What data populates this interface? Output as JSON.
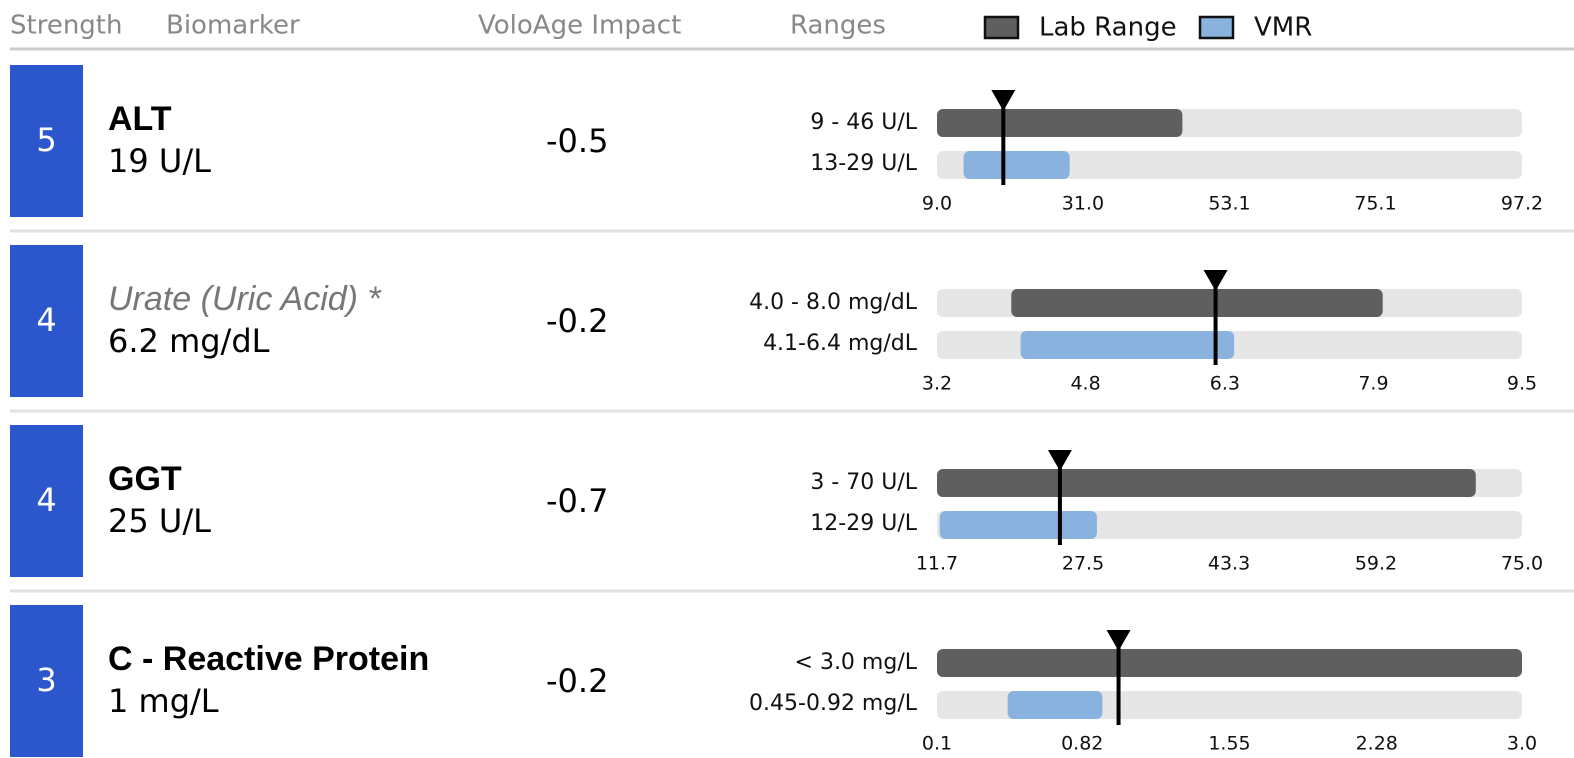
{
  "header": {
    "strength": "Strength",
    "biomarker": "Biomarker",
    "impact": "VoloAge Impact",
    "ranges": "Ranges"
  },
  "legend": [
    {
      "name": "Lab Range",
      "color": "#5f5f5f"
    },
    {
      "name": "VMR",
      "color": "#89b2de"
    }
  ],
  "rows": [
    {
      "strength": 5,
      "name": "ALT",
      "italic": false,
      "value_label": "19 U/L",
      "value": 19,
      "impact": -0.5,
      "lab_label": "9 - 46 U/L",
      "lab": [
        9,
        46
      ],
      "vmr_label": "13-29 U/L",
      "vmr": [
        13,
        29
      ],
      "ticks": [
        {
          "value": 9,
          "label": "9.0"
        },
        {
          "value": 31,
          "label": "31.0"
        },
        53.1,
        75.1,
        97.2
      ]
    },
    {
      "strength": 4,
      "name": "Urate (Uric Acid) *",
      "italic": true,
      "value_label": "6.2 mg/dL",
      "value": 6.2,
      "impact": -0.2,
      "lab_label": "4.0 - 8.0 mg/dL",
      "lab": [
        4,
        8
      ],
      "vmr_label": "4.1-6.4 mg/dL",
      "vmr": [
        4.1,
        6.4
      ],
      "ticks": [
        3.2,
        4.8,
        6.3,
        7.9,
        9.5
      ]
    },
    {
      "strength": 4,
      "name": "GGT",
      "italic": false,
      "value_label": "25 U/L",
      "value": 25,
      "impact": -0.7,
      "lab_label": "3 - 70 U/L",
      "lab": [
        3,
        70
      ],
      "vmr_label": "12-29 U/L",
      "vmr": [
        12,
        29
      ],
      "ticks": [
        11.7,
        27.5,
        43.3,
        59.2,
        {
          "value": 75,
          "label": "75.0"
        }
      ]
    },
    {
      "strength": 3,
      "name": "C - Reactive Protein",
      "italic": false,
      "value_label": "1 mg/L",
      "value": 1,
      "impact": -0.2,
      "lab_label": "< 3.0 mg/L",
      "lab": [
        null,
        3
      ],
      "vmr_label": "0.45-0.92 mg/L",
      "vmr": [
        0.45,
        0.92
      ],
      "ticks": [
        0.1,
        0.82,
        1.55,
        2.28,
        {
          "value": 3,
          "label": "3.0"
        }
      ]
    }
  ]
}
